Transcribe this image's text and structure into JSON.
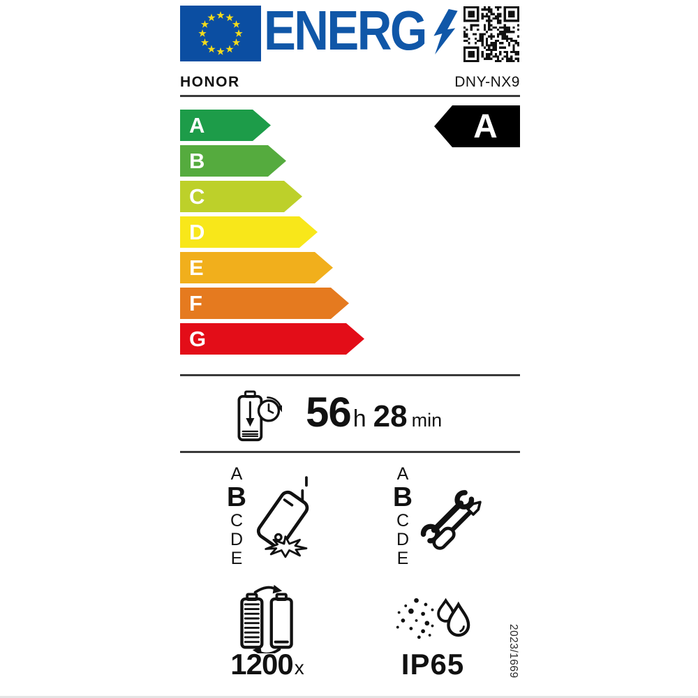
{
  "header": {
    "logo_text": "ENERG",
    "logo_color": "#1057a8",
    "eu_flag": {
      "background": "#0b4ea2",
      "star_color": "#f4dc1b"
    }
  },
  "brand": {
    "name": "HONOR",
    "model": "DNY-NX9"
  },
  "energy_scale": {
    "classes": [
      {
        "label": "A",
        "color": "#1d9c49"
      },
      {
        "label": "B",
        "color": "#55ab3e"
      },
      {
        "label": "C",
        "color": "#bdd02a"
      },
      {
        "label": "D",
        "color": "#f8e71a"
      },
      {
        "label": "E",
        "color": "#f1af1c"
      },
      {
        "label": "F",
        "color": "#e57a1f"
      },
      {
        "label": "G",
        "color": "#e30d18"
      }
    ],
    "rated_class": "A",
    "rated_arrow_color": "#000000"
  },
  "battery_endurance": {
    "hours": "56",
    "hours_unit": "h",
    "minutes": "28",
    "minutes_unit": "min"
  },
  "drop_resistance": {
    "scale": [
      "A",
      "B",
      "C",
      "D",
      "E"
    ],
    "rated": "B"
  },
  "repairability": {
    "scale": [
      "A",
      "B",
      "C",
      "D",
      "E"
    ],
    "rated": "B"
  },
  "battery_cycles": {
    "value": "1200",
    "unit": "x"
  },
  "ingress_protection": {
    "rating": "IP65"
  },
  "regulation_reference": "2023/1669",
  "icons": {
    "eu_flag": "eu-flag",
    "qr": "qr-code-icon",
    "lightning": "lightning-bolt-icon",
    "battery_endurance": "battery-runtime-clock-icon",
    "drop_resistance": "phone-drop-icon",
    "repairability": "wrench-screwdriver-icon",
    "battery_cycles": "battery-cycle-icon",
    "ingress_protection": "dust-water-drops-icon"
  }
}
